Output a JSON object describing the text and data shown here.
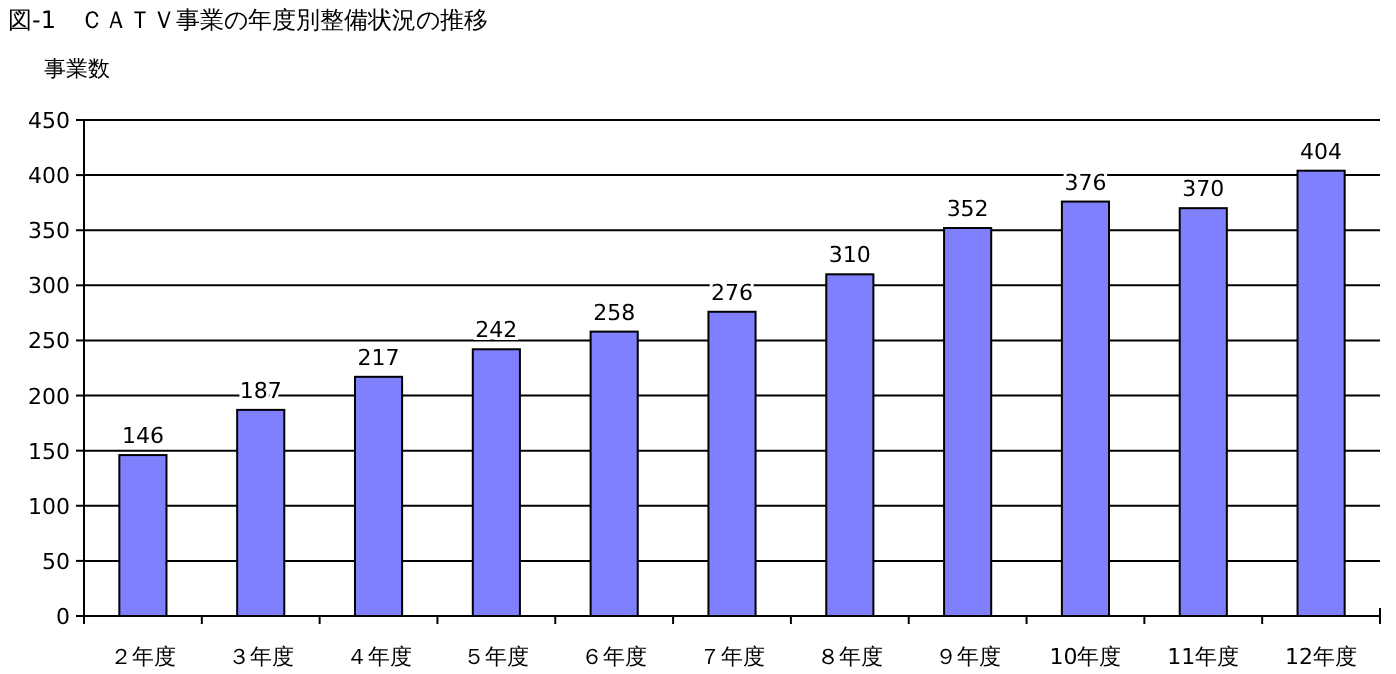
{
  "chart_data": {
    "type": "bar",
    "title": "図-1　ＣＡＴＶ事業の年度別整備状況の推移",
    "ylabel": "事業数",
    "categories": [
      "２年度",
      "３年度",
      "４年度",
      "５年度",
      "６年度",
      "７年度",
      "８年度",
      "９年度",
      "10年度",
      "11年度",
      "12年度"
    ],
    "values": [
      146,
      187,
      217,
      242,
      258,
      276,
      310,
      352,
      376,
      370,
      404
    ],
    "color": "#8080ff",
    "ylim": [
      0,
      450
    ],
    "yticks": [
      0,
      50,
      100,
      150,
      200,
      250,
      300,
      350,
      400,
      450
    ],
    "grid": "y",
    "data_labels": true
  }
}
